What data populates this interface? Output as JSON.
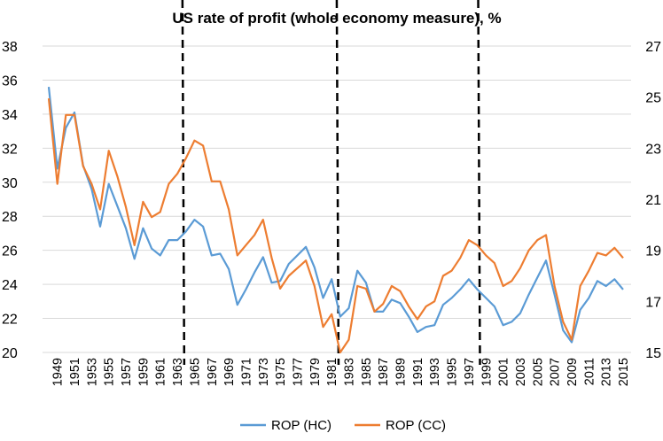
{
  "chart_data": {
    "type": "line",
    "title": "US rate of profit (whole economy measure), %",
    "xlabel": "",
    "ylabel": "",
    "x": [
      1948,
      1949,
      1950,
      1951,
      1952,
      1953,
      1954,
      1955,
      1956,
      1957,
      1958,
      1959,
      1960,
      1961,
      1962,
      1963,
      1964,
      1965,
      1966,
      1967,
      1968,
      1969,
      1970,
      1971,
      1972,
      1973,
      1974,
      1975,
      1976,
      1977,
      1978,
      1979,
      1980,
      1981,
      1982,
      1983,
      1984,
      1985,
      1986,
      1987,
      1988,
      1989,
      1990,
      1991,
      1992,
      1993,
      1994,
      1995,
      1996,
      1997,
      1998,
      1999,
      2000,
      2001,
      2002,
      2003,
      2004,
      2005,
      2006,
      2007,
      2008,
      2009,
      2010,
      2011,
      2012,
      2013,
      2014,
      2015
    ],
    "x_tick_labels": [
      "1949",
      "1951",
      "1953",
      "1955",
      "1957",
      "1959",
      "1961",
      "1963",
      "1965",
      "1967",
      "1969",
      "1971",
      "1973",
      "1975",
      "1977",
      "1979",
      "1981",
      "1983",
      "1985",
      "1987",
      "1989",
      "1991",
      "1993",
      "1995",
      "1997",
      "1999",
      "2001",
      "2003",
      "2005",
      "2007",
      "2009",
      "2011",
      "2013",
      "2015"
    ],
    "y_left": {
      "ylim": [
        20,
        38
      ],
      "ticks": [
        "20",
        "22",
        "24",
        "26",
        "28",
        "30",
        "32",
        "34",
        "36",
        "38"
      ]
    },
    "y_right": {
      "ylim": [
        15,
        27
      ],
      "ticks": [
        "15",
        "17",
        "19",
        "21",
        "23",
        "25",
        "27"
      ]
    },
    "grid": true,
    "legend_position": "bottom",
    "series": [
      {
        "name": "ROP (HC)",
        "axis": "left",
        "color": "#5B9BD5",
        "values": [
          35.6,
          30.8,
          33.2,
          34.1,
          31.0,
          29.6,
          27.4,
          29.9,
          28.6,
          27.3,
          25.5,
          27.3,
          26.1,
          25.7,
          26.6,
          26.6,
          27.1,
          27.8,
          27.4,
          25.7,
          25.8,
          24.9,
          22.8,
          23.7,
          24.7,
          25.6,
          24.1,
          24.2,
          25.2,
          25.7,
          26.2,
          25.0,
          23.2,
          24.3,
          22.1,
          22.6,
          24.8,
          24.1,
          22.4,
          22.4,
          23.1,
          22.9,
          22.1,
          21.2,
          21.5,
          21.6,
          22.8,
          23.2,
          23.7,
          24.3,
          23.7,
          23.2,
          22.7,
          21.6,
          21.8,
          22.3,
          23.4,
          24.4,
          25.4,
          23.4,
          21.3,
          20.6,
          22.5,
          23.2,
          24.2,
          23.9,
          24.3,
          23.7
        ]
      },
      {
        "name": "ROP (CC)",
        "axis": "right",
        "color": "#ED7D31",
        "values": [
          24.95,
          21.6,
          24.3,
          24.3,
          22.3,
          21.6,
          20.6,
          22.9,
          21.9,
          20.7,
          19.2,
          20.9,
          20.3,
          20.5,
          21.6,
          22.0,
          22.6,
          23.3,
          23.1,
          21.7,
          21.7,
          20.6,
          18.8,
          19.2,
          19.6,
          20.2,
          18.7,
          17.5,
          18.0,
          18.3,
          18.6,
          17.6,
          16.0,
          16.5,
          15.0,
          15.5,
          17.6,
          17.5,
          16.6,
          16.9,
          17.6,
          17.4,
          16.8,
          16.3,
          16.8,
          17.0,
          18.0,
          18.2,
          18.7,
          19.4,
          19.2,
          18.8,
          18.5,
          17.6,
          17.8,
          18.3,
          19.0,
          19.4,
          19.6,
          17.6,
          16.2,
          15.5,
          17.6,
          18.2,
          18.9,
          18.8,
          19.1,
          18.7
        ]
      }
    ],
    "vertical_markers": [
      1963.7,
      1981.7,
      1998.2
    ]
  }
}
